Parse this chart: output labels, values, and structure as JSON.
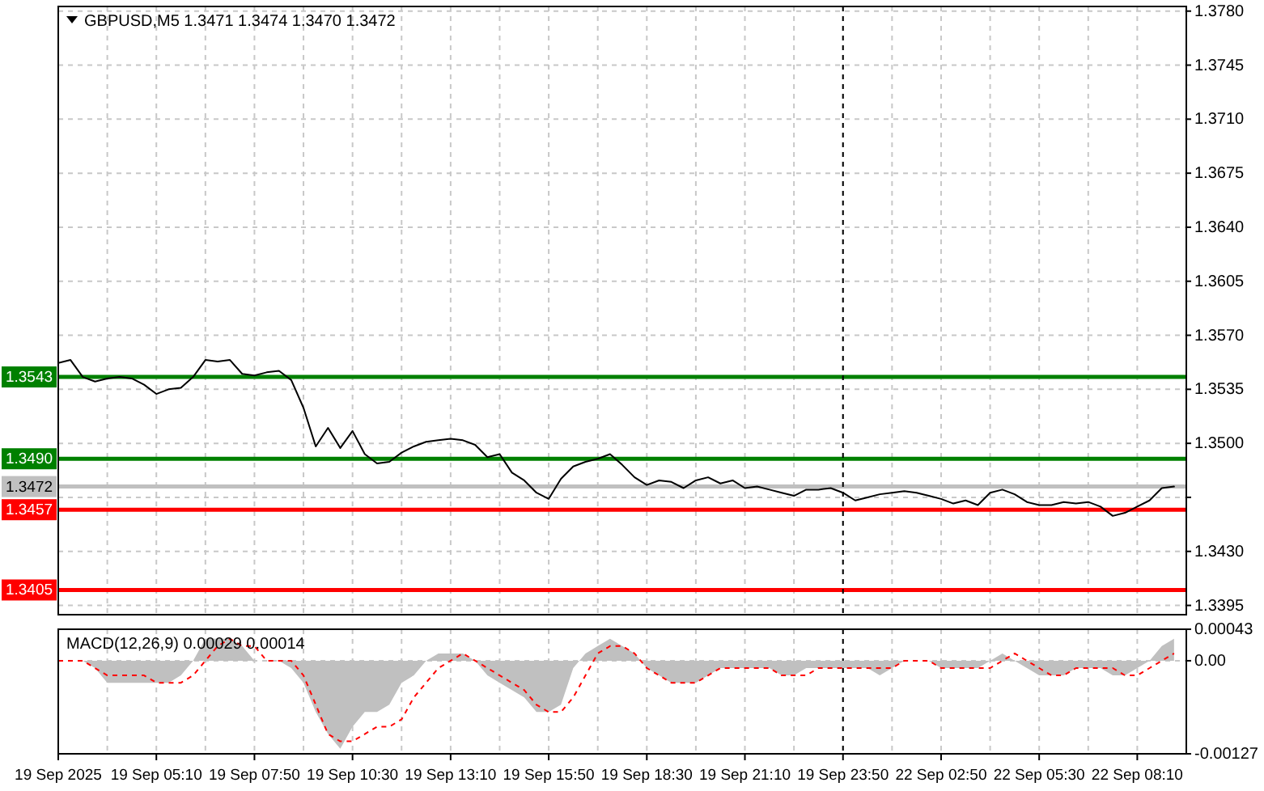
{
  "chart_data": [
    {
      "type": "line",
      "title": "GBPUSD,M5 1.3471 1.3474 1.3470 1.3472",
      "categories": [
        "19 Sep 2025",
        null,
        null,
        null,
        null,
        null,
        null,
        null,
        "19 Sep 05:10",
        null,
        null,
        null,
        null,
        null,
        null,
        null,
        "19 Sep 07:50",
        null,
        null,
        null,
        null,
        null,
        null,
        null,
        "19 Sep 10:30",
        null,
        null,
        null,
        null,
        null,
        null,
        null,
        "19 Sep 13:10",
        null,
        null,
        null,
        null,
        null,
        null,
        null,
        "19 Sep 15:50",
        null,
        null,
        null,
        null,
        null,
        null,
        null,
        "19 Sep 18:30",
        null,
        null,
        null,
        null,
        null,
        null,
        null,
        "19 Sep 21:10",
        null,
        null,
        null,
        null,
        null,
        null,
        null,
        "19 Sep 23:50",
        null,
        null,
        null,
        null,
        null,
        null,
        null,
        "22 Sep 02:50",
        null,
        null,
        null,
        null,
        null,
        null,
        null,
        "22 Sep 05:30",
        null,
        null,
        null,
        null,
        null,
        null,
        null,
        "22 Sep 08:10",
        null,
        null,
        null,
        null
      ],
      "values": [
        1.3552,
        1.3554,
        1.3543,
        1.354,
        1.3542,
        1.3543,
        1.3542,
        1.3538,
        1.3532,
        1.3535,
        1.3536,
        1.3543,
        1.3554,
        1.3553,
        1.3554,
        1.3545,
        1.3544,
        1.3546,
        1.3547,
        1.3541,
        1.3523,
        1.3498,
        1.351,
        1.3497,
        1.3508,
        1.3493,
        1.3487,
        1.3488,
        1.3494,
        1.3498,
        1.3501,
        1.3502,
        1.3503,
        1.3502,
        1.3499,
        1.3491,
        1.3493,
        1.3481,
        1.3476,
        1.3468,
        1.3464,
        1.3477,
        1.3485,
        1.3488,
        1.349,
        1.3493,
        1.3486,
        1.3478,
        1.3473,
        1.3476,
        1.3475,
        1.3471,
        1.3476,
        1.3478,
        1.3474,
        1.3476,
        1.3471,
        1.3472,
        1.347,
        1.3468,
        1.3466,
        1.347,
        1.347,
        1.3471,
        1.3468,
        1.3463,
        1.3465,
        1.3467,
        1.3468,
        1.3469,
        1.3468,
        1.3466,
        1.3464,
        1.3461,
        1.3463,
        1.346,
        1.3468,
        1.347,
        1.3467,
        1.3462,
        1.346,
        1.346,
        1.3462,
        1.3461,
        1.3462,
        1.3459,
        1.3453,
        1.3455,
        1.3459,
        1.3463,
        1.3471,
        1.3472,
        null
      ],
      "color": "#000000",
      "ylim": [
        1.3389,
        1.3783
      ],
      "yticks": [
        {
          "value": 1.378,
          "label": "1.3780"
        },
        {
          "value": 1.3745,
          "label": "1.3745"
        },
        {
          "value": 1.371,
          "label": "1.3710"
        },
        {
          "value": 1.3675,
          "label": "1.3675"
        },
        {
          "value": 1.364,
          "label": "1.3640"
        },
        {
          "value": 1.3605,
          "label": "1.3605"
        },
        {
          "value": 1.357,
          "label": "1.3570"
        },
        {
          "value": 1.3535,
          "label": "1.3535"
        },
        {
          "value": 1.35,
          "label": "1.3500"
        },
        {
          "value": 1.3465,
          "label": null
        },
        {
          "value": 1.343,
          "label": "1.3430"
        },
        {
          "value": 1.3395,
          "label": "1.3395"
        }
      ],
      "grid": true,
      "tick_labels": "y",
      "ref_lines": [
        {
          "axis": "y",
          "value": 1.3543,
          "label": "1.3543",
          "color": "#008000"
        },
        {
          "axis": "y",
          "value": 1.349,
          "label": "1.3490",
          "color": "#008000"
        },
        {
          "axis": "y",
          "value": 1.3472,
          "label": "1.3472",
          "color": "#c0c0c0"
        },
        {
          "axis": "y",
          "value": 1.3457,
          "label": "1.3457",
          "color": "#ff0000"
        },
        {
          "axis": "y",
          "value": 1.3405,
          "label": "1.3405",
          "color": "#ff0000"
        },
        {
          "axis": "x",
          "value": "19 Sep 23:50",
          "color": "#000000",
          "line_style": "dashed"
        }
      ]
    },
    {
      "type": "area",
      "title": "MACD(12,26,9) 0.00029 0.00014",
      "categories": [
        "19 Sep 2025",
        null,
        null,
        null,
        null,
        null,
        null,
        null,
        "19 Sep 05:10",
        null,
        null,
        null,
        null,
        null,
        null,
        null,
        "19 Sep 07:50",
        null,
        null,
        null,
        null,
        null,
        null,
        null,
        "19 Sep 10:30",
        null,
        null,
        null,
        null,
        null,
        null,
        null,
        "19 Sep 13:10",
        null,
        null,
        null,
        null,
        null,
        null,
        null,
        "19 Sep 15:50",
        null,
        null,
        null,
        null,
        null,
        null,
        null,
        "19 Sep 18:30",
        null,
        null,
        null,
        null,
        null,
        null,
        null,
        "19 Sep 21:10",
        null,
        null,
        null,
        null,
        null,
        null,
        null,
        "19 Sep 23:50",
        null,
        null,
        null,
        null,
        null,
        null,
        null,
        "22 Sep 02:50",
        null,
        null,
        null,
        null,
        null,
        null,
        null,
        "22 Sep 05:30",
        null,
        null,
        null,
        null,
        null,
        null,
        null,
        "22 Sep 08:10",
        null,
        null,
        null,
        null
      ],
      "series": [
        {
          "color": "#c0c0c0",
          "values": [
            0,
            0,
            0,
            -0.0001,
            -0.0003,
            -0.0003,
            -0.0003,
            -0.0003,
            -0.0003,
            -0.0003,
            -0.0002,
            0,
            0.0003,
            0.0003,
            0.0003,
            0.0002,
            0,
            0,
            0,
            -0.0001,
            -0.0003,
            -0.0007,
            -0.001,
            -0.0012,
            -0.0009,
            -0.0007,
            -0.0007,
            -0.0006,
            -0.0003,
            -0.0002,
            0,
            0.0001,
            0.0001,
            0.0001,
            0,
            -0.0002,
            -0.0003,
            -0.0004,
            -0.0005,
            -0.0007,
            -0.0007,
            -0.0006,
            -0.0001,
            0.0001,
            0.0002,
            0.0003,
            0.0002,
            0.0001,
            -0.0001,
            -0.0002,
            -0.0003,
            -0.0003,
            -0.0003,
            -0.0002,
            -0.0001,
            -0.0001,
            -0.0001,
            -0.0001,
            -0.0001,
            -0.0002,
            -0.0002,
            -0.0001,
            -0.0001,
            -0.0001,
            -0.0001,
            -0.0001,
            -0.0001,
            -0.0002,
            -0.0001,
            0,
            0,
            0,
            -0.0001,
            -0.0001,
            -0.0001,
            -0.0001,
            0,
            0.0001,
            0,
            -0.0001,
            -0.0002,
            -0.0002,
            -0.0002,
            -0.0001,
            -0.0001,
            -0.0001,
            -0.0002,
            -0.0002,
            -0.0001,
            0,
            0.0002,
            0.0003,
            null
          ]
        },
        {
          "type": "line",
          "color": "#ff0000",
          "line_style": "dashed",
          "values": [
            0,
            0,
            0,
            -0.0001,
            -0.0002,
            -0.0002,
            -0.0002,
            -0.0002,
            -0.0003,
            -0.0003,
            -0.0003,
            -0.0002,
            0,
            0.0002,
            0.0003,
            0.0002,
            0.0002,
            0,
            0,
            0,
            -0.0002,
            -0.0006,
            -0.001,
            -0.0011,
            -0.0011,
            -0.001,
            -0.0009,
            -0.0009,
            -0.0008,
            -0.0005,
            -0.0003,
            -0.0001,
            0,
            0.0001,
            0,
            -0.0001,
            -0.0002,
            -0.0003,
            -0.0004,
            -0.0006,
            -0.0007,
            -0.0007,
            -0.0005,
            -0.0002,
            0.0001,
            0.0002,
            0.0002,
            0.0001,
            -0.0001,
            -0.0002,
            -0.0003,
            -0.0003,
            -0.0003,
            -0.0002,
            -0.0001,
            -0.0001,
            -0.0001,
            -0.0001,
            -0.0001,
            -0.0002,
            -0.0002,
            -0.0002,
            -0.0001,
            -0.0001,
            -0.0001,
            -0.0001,
            -0.0001,
            -0.0001,
            -0.0001,
            0,
            0,
            0,
            -0.0001,
            -0.0001,
            -0.0001,
            -0.0001,
            -0.0001,
            0,
            0.0001,
            0,
            -0.0001,
            -0.0002,
            -0.0002,
            -0.0001,
            -0.0001,
            -0.0001,
            -0.0001,
            -0.0002,
            -0.0002,
            -0.0001,
            0,
            0.0001,
            null
          ]
        }
      ],
      "ylim": [
        -0.00127,
        0.00043
      ],
      "yticks": [
        0.00043,
        {
          "value": 0,
          "label": "0.00"
        },
        -0.00127
      ],
      "grid": true,
      "ref_lines": [
        {
          "axis": "x",
          "value": "19 Sep 23:50",
          "color": "#000000",
          "line_style": "dashed"
        }
      ]
    }
  ]
}
